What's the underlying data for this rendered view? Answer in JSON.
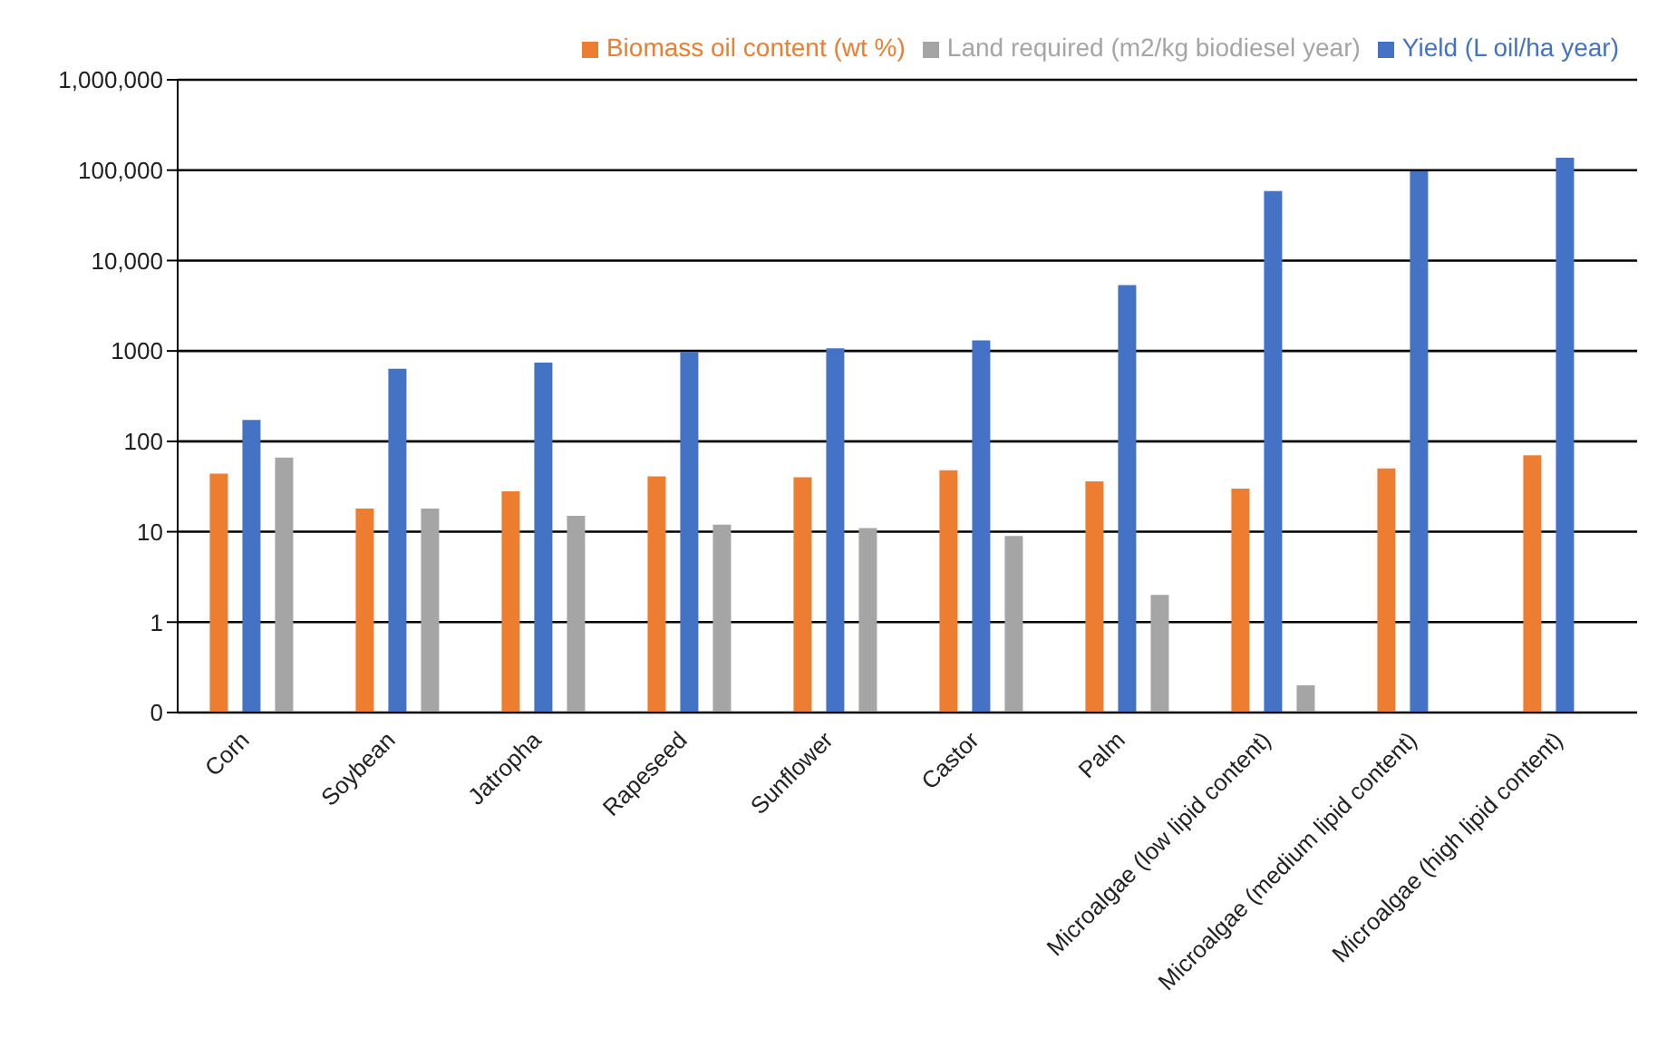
{
  "chart_data": {
    "type": "bar",
    "categories": [
      "Corn",
      "Soybean",
      "Jatropha",
      "Rapeseed",
      "Sunflower",
      "Castor",
      "Palm",
      "Microalgae (low lipid content)",
      "Microalgae (medium lipid content)",
      "Microalgae (high lipid content)"
    ],
    "series": [
      {
        "name": "Biomass oil content (wt %)",
        "color": "#ed7d31",
        "values": [
          44,
          18,
          28,
          41,
          40,
          48,
          36,
          30,
          50,
          70
        ]
      },
      {
        "name": "Yield (L oil/ha year)",
        "color": "#4472c4",
        "values": [
          172,
          636,
          741,
          974,
          1070,
          1307,
          5366,
          58700,
          97800,
          136900
        ]
      },
      {
        "name": "Land required (m2/kg biodiesel year)",
        "color": "#a5a5a5",
        "values": [
          66,
          18,
          15,
          12,
          11,
          9,
          2,
          0.2,
          null,
          null
        ]
      }
    ],
    "log": "y",
    "ylim": [
      0.1,
      1000000
    ],
    "yticks": [
      {
        "value": 0.1,
        "label": "0"
      },
      1,
      10,
      100,
      1000,
      {
        "value": 10000,
        "label": "10,000"
      },
      {
        "value": 100000,
        "label": "100,000"
      },
      {
        "value": 1000000,
        "label": "1,000,000"
      }
    ],
    "grid": "y",
    "legend": "top"
  }
}
